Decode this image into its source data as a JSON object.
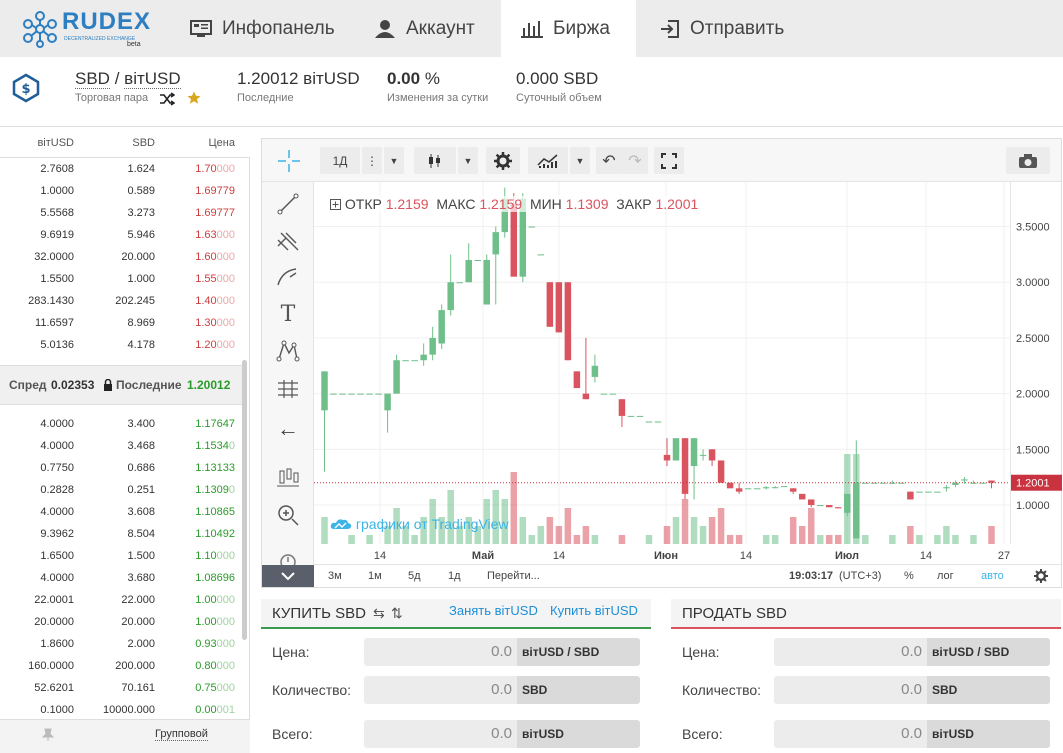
{
  "nav": {
    "logo": {
      "brand": "RUDEX",
      "sub": "DECENTRALIZED EXCHANGE",
      "tag": "beta"
    },
    "tabs": [
      {
        "label": "Инфопанель",
        "icon": "dashboard-icon"
      },
      {
        "label": "Аккаунт",
        "icon": "user-icon"
      },
      {
        "label": "Биржа",
        "icon": "bar-chart-icon",
        "active": true
      },
      {
        "label": "Отправить",
        "icon": "send-icon"
      }
    ]
  },
  "pair": {
    "base": "SBD",
    "sep": "/",
    "quote": "вітUSD",
    "pair_label": "Торговая пара",
    "last_value": "1.20012 вітUSD",
    "last_label": "Последние",
    "change_value": "0.00",
    "change_unit": "%",
    "change_label": "Изменения за сутки",
    "volume_value": "0.000 SBD",
    "volume_label": "Суточный объем"
  },
  "orderbook": {
    "headers": [
      "вітUSD",
      "SBD",
      "Цена"
    ],
    "asks": [
      [
        "2.7608",
        "1.624",
        "1.70",
        "000"
      ],
      [
        "1.0000",
        "0.589",
        "1.69779",
        ""
      ],
      [
        "5.5568",
        "3.273",
        "1.69777",
        ""
      ],
      [
        "9.6919",
        "5.946",
        "1.63",
        "000"
      ],
      [
        "32.0000",
        "20.000",
        "1.60",
        "000"
      ],
      [
        "1.5500",
        "1.000",
        "1.55",
        "000"
      ],
      [
        "283.1430",
        "202.245",
        "1.40",
        "000"
      ],
      [
        "11.6597",
        "8.969",
        "1.30",
        "000"
      ],
      [
        "5.0136",
        "4.178",
        "1.20",
        "000"
      ]
    ],
    "spread_label": "Спред",
    "spread_value": "0.02353",
    "last_label": "Последние",
    "last_value": "1.20012",
    "bids": [
      [
        "4.0000",
        "3.400",
        "1.17647",
        ""
      ],
      [
        "4.0000",
        "3.468",
        "1.1534",
        "0"
      ],
      [
        "0.7750",
        "0.686",
        "1.13133",
        ""
      ],
      [
        "0.2828",
        "0.251",
        "1.1309",
        "0"
      ],
      [
        "4.0000",
        "3.608",
        "1.10865",
        ""
      ],
      [
        "9.3962",
        "8.504",
        "1.10492",
        ""
      ],
      [
        "1.6500",
        "1.500",
        "1.10",
        "000"
      ],
      [
        "4.0000",
        "3.680",
        "1.08696",
        ""
      ],
      [
        "22.0001",
        "22.000",
        "1.00",
        "000"
      ],
      [
        "20.0000",
        "20.000",
        "1.00",
        "000"
      ],
      [
        "1.8600",
        "2.000",
        "0.93",
        "000"
      ],
      [
        "160.0000",
        "200.000",
        "0.80",
        "000"
      ],
      [
        "52.6201",
        "70.161",
        "0.75",
        "000"
      ],
      [
        "0.1000",
        "10000.000",
        "0.00",
        "001"
      ]
    ],
    "footer_label": "Групповой"
  },
  "chart": {
    "toolbar": {
      "interval": "1Д"
    },
    "ohlc": {
      "open_label": "ОТКР",
      "open": "1.2159",
      "high_label": "МАКС",
      "high": "1.2159",
      "low_label": "МИН",
      "low": "1.1309",
      "close_label": "ЗАКР",
      "close": "1.2001"
    },
    "attribution": "графики от TradingView",
    "price_ticks": [
      "3.5000",
      "3.0000",
      "2.5000",
      "2.0000",
      "1.5000",
      "1.0000"
    ],
    "last_price_tag": "1.2001",
    "time_ticks": [
      "14",
      "Май",
      "14",
      "Июн",
      "14",
      "Июл",
      "14",
      "27"
    ],
    "ranges": [
      "3м",
      "1м",
      "5д",
      "1д",
      "Перейти..."
    ],
    "clock": "19:03:17",
    "tz": "(UTC+3)",
    "pct": "%",
    "log": "лог",
    "auto": "авто",
    "colors": {
      "up": "#6fbf8a",
      "down": "#d9545e",
      "last": "#c8333f",
      "accent": "#3cb4e5"
    }
  },
  "chart_data": {
    "type": "candlestick",
    "title": "",
    "ylim": [
      0.65,
      3.9
    ],
    "y_ticks": [
      1.0,
      1.5,
      2.0,
      2.5,
      3.0,
      3.5
    ],
    "x_ticks": [
      "14",
      "Май",
      "14",
      "Июн",
      "14",
      "Июл",
      "14",
      "27"
    ],
    "last_price": 1.2001,
    "candles": [
      {
        "o": 1.85,
        "h": 2.2,
        "l": 1.3,
        "c": 2.2
      },
      {
        "o": 2.0,
        "h": 2.0,
        "l": 2.0,
        "c": 2.0
      },
      {
        "o": 2.0,
        "h": 2.0,
        "l": 2.0,
        "c": 2.0
      },
      {
        "o": 2.0,
        "h": 2.0,
        "l": 2.0,
        "c": 2.0
      },
      {
        "o": 2.0,
        "h": 2.0,
        "l": 2.0,
        "c": 2.0
      },
      {
        "o": 2.0,
        "h": 2.0,
        "l": 2.0,
        "c": 2.0
      },
      {
        "o": 2.0,
        "h": 2.0,
        "l": 2.0,
        "c": 2.0
      },
      {
        "o": 1.85,
        "h": 2.0,
        "l": 1.65,
        "c": 2.0
      },
      {
        "o": 2.0,
        "h": 2.35,
        "l": 2.0,
        "c": 2.3
      },
      {
        "o": 2.3,
        "h": 2.3,
        "l": 2.3,
        "c": 2.3
      },
      {
        "o": 2.3,
        "h": 2.3,
        "l": 2.3,
        "c": 2.3
      },
      {
        "o": 2.3,
        "h": 2.45,
        "l": 2.25,
        "c": 2.35
      },
      {
        "o": 2.35,
        "h": 2.6,
        "l": 2.3,
        "c": 2.5
      },
      {
        "o": 2.45,
        "h": 2.8,
        "l": 2.4,
        "c": 2.75
      },
      {
        "o": 2.75,
        "h": 3.25,
        "l": 2.7,
        "c": 3.0
      },
      {
        "o": 3.0,
        "h": 3.0,
        "l": 3.0,
        "c": 3.0
      },
      {
        "o": 3.0,
        "h": 3.35,
        "l": 3.0,
        "c": 3.2
      },
      {
        "o": 3.2,
        "h": 3.2,
        "l": 3.2,
        "c": 3.2
      },
      {
        "o": 2.8,
        "h": 3.25,
        "l": 2.8,
        "c": 3.2
      },
      {
        "o": 3.25,
        "h": 3.5,
        "l": 2.8,
        "c": 3.45
      },
      {
        "o": 3.45,
        "h": 3.85,
        "l": 3.4,
        "c": 3.75
      },
      {
        "o": 3.7,
        "h": 3.8,
        "l": 3.05,
        "c": 3.05
      },
      {
        "o": 3.05,
        "h": 3.8,
        "l": 3.0,
        "c": 3.75
      },
      {
        "o": 3.5,
        "h": 3.5,
        "l": 3.5,
        "c": 3.5
      },
      {
        "o": 3.25,
        "h": 3.25,
        "l": 3.25,
        "c": 3.25
      },
      {
        "o": 3.0,
        "h": 3.0,
        "l": 2.6,
        "c": 2.6
      },
      {
        "o": 3.0,
        "h": 3.0,
        "l": 2.55,
        "c": 2.55
      },
      {
        "o": 3.0,
        "h": 3.0,
        "l": 2.3,
        "c": 2.3
      },
      {
        "o": 2.2,
        "h": 2.2,
        "l": 2.05,
        "c": 2.05
      },
      {
        "o": 2.0,
        "h": 2.5,
        "l": 1.95,
        "c": 1.95
      },
      {
        "o": 2.15,
        "h": 2.35,
        "l": 2.1,
        "c": 2.25
      },
      {
        "o": 2.0,
        "h": 2.0,
        "l": 2.0,
        "c": 2.0
      },
      {
        "o": 2.0,
        "h": 2.0,
        "l": 2.0,
        "c": 2.0
      },
      {
        "o": 1.95,
        "h": 1.95,
        "l": 1.7,
        "c": 1.8
      },
      {
        "o": 1.8,
        "h": 1.8,
        "l": 1.8,
        "c": 1.8
      },
      {
        "o": 1.8,
        "h": 1.8,
        "l": 1.8,
        "c": 1.8
      },
      {
        "o": 1.75,
        "h": 1.75,
        "l": 1.75,
        "c": 1.75
      },
      {
        "o": 1.75,
        "h": 1.75,
        "l": 1.75,
        "c": 1.75
      },
      {
        "o": 1.45,
        "h": 1.6,
        "l": 1.35,
        "c": 1.4
      },
      {
        "o": 1.4,
        "h": 1.6,
        "l": 1.4,
        "c": 1.6
      },
      {
        "o": 1.6,
        "h": 1.6,
        "l": 1.05,
        "c": 1.1
      },
      {
        "o": 1.35,
        "h": 1.6,
        "l": 1.05,
        "c": 1.6
      },
      {
        "o": 1.45,
        "h": 1.5,
        "l": 1.4,
        "c": 1.45
      },
      {
        "o": 1.5,
        "h": 1.5,
        "l": 1.35,
        "c": 1.4
      },
      {
        "o": 1.4,
        "h": 1.4,
        "l": 1.2,
        "c": 1.2
      },
      {
        "o": 1.2,
        "h": 1.2,
        "l": 1.15,
        "c": 1.15
      },
      {
        "o": 1.15,
        "h": 1.2,
        "l": 1.1,
        "c": 1.12
      },
      {
        "o": 1.15,
        "h": 1.15,
        "l": 1.15,
        "c": 1.15
      },
      {
        "o": 1.15,
        "h": 1.15,
        "l": 1.15,
        "c": 1.15
      },
      {
        "o": 1.15,
        "h": 1.17,
        "l": 1.14,
        "c": 1.16
      },
      {
        "o": 1.16,
        "h": 1.17,
        "l": 1.15,
        "c": 1.16
      },
      {
        "o": 1.17,
        "h": 1.17,
        "l": 1.17,
        "c": 1.17
      },
      {
        "o": 1.15,
        "h": 1.15,
        "l": 1.1,
        "c": 1.12
      },
      {
        "o": 1.1,
        "h": 1.1,
        "l": 1.05,
        "c": 1.05
      },
      {
        "o": 1.05,
        "h": 1.05,
        "l": 0.98,
        "c": 1.0
      },
      {
        "o": 1.0,
        "h": 1.0,
        "l": 1.0,
        "c": 1.0
      },
      {
        "o": 1.0,
        "h": 1.0,
        "l": 0.98,
        "c": 0.98
      },
      {
        "o": 0.98,
        "h": 0.98,
        "l": 0.97,
        "c": 0.97
      },
      {
        "o": 0.93,
        "h": 1.1,
        "l": 0.9,
        "c": 1.1
      },
      {
        "o": 0.7,
        "h": 1.58,
        "l": 0.7,
        "c": 1.2
      },
      {
        "o": 1.2,
        "h": 1.2,
        "l": 1.2,
        "c": 1.2
      },
      {
        "o": 1.2,
        "h": 1.2,
        "l": 1.2,
        "c": 1.2
      },
      {
        "o": 1.2,
        "h": 1.2,
        "l": 1.2,
        "c": 1.2
      },
      {
        "o": 1.2,
        "h": 1.22,
        "l": 1.19,
        "c": 1.2
      },
      {
        "o": 1.2,
        "h": 1.2,
        "l": 1.2,
        "c": 1.2
      },
      {
        "o": 1.12,
        "h": 1.12,
        "l": 1.05,
        "c": 1.05
      },
      {
        "o": 1.12,
        "h": 1.12,
        "l": 1.12,
        "c": 1.12
      },
      {
        "o": 1.12,
        "h": 1.12,
        "l": 1.12,
        "c": 1.12
      },
      {
        "o": 1.12,
        "h": 1.12,
        "l": 1.12,
        "c": 1.12
      },
      {
        "o": 1.15,
        "h": 1.18,
        "l": 1.12,
        "c": 1.16
      },
      {
        "o": 1.18,
        "h": 1.22,
        "l": 1.16,
        "c": 1.2
      },
      {
        "o": 1.22,
        "h": 1.25,
        "l": 1.19,
        "c": 1.23
      },
      {
        "o": 1.2,
        "h": 1.22,
        "l": 1.19,
        "c": 1.2
      },
      {
        "o": 1.2,
        "h": 1.2,
        "l": 1.2,
        "c": 1.2
      },
      {
        "o": 1.22,
        "h": 1.22,
        "l": 1.15,
        "c": 1.2
      }
    ],
    "volume": [
      0.3,
      0.0,
      0.0,
      0.1,
      0.0,
      0.1,
      0.0,
      0.2,
      0.4,
      0.2,
      0.1,
      0.3,
      0.5,
      0.3,
      0.6,
      0.2,
      0.3,
      0.2,
      0.5,
      0.6,
      0.5,
      0.8,
      0.3,
      0.1,
      0.2,
      0.3,
      0.2,
      0.4,
      0.1,
      0.2,
      0.1,
      0.0,
      0.0,
      0.1,
      0.0,
      0.0,
      0.1,
      0.0,
      0.2,
      0.3,
      0.5,
      0.3,
      0.2,
      0.3,
      0.4,
      0.1,
      0.1,
      0.0,
      0.0,
      0.1,
      0.1,
      0.0,
      0.3,
      0.2,
      0.4,
      0.1,
      0.1,
      0.1,
      1.0,
      1.0,
      0.1,
      0.0,
      0.0,
      0.1,
      0.0,
      0.2,
      0.1,
      0.0,
      0.1,
      0.2,
      0.1,
      0.0,
      0.1,
      0.0,
      0.2
    ]
  },
  "buy": {
    "title": "КУПИТЬ SBD",
    "borrow": "Занять вітUSD",
    "buy_link": "Купить вітUSD",
    "price_label": "Цена:",
    "price_value": "0.0",
    "price_unit": "вітUSD / SBD",
    "amount_label": "Количество:",
    "amount_value": "0.0",
    "amount_unit": "SBD",
    "total_label": "Всего:",
    "total_value": "0.0",
    "total_unit": "вітUSD"
  },
  "sell": {
    "title": "ПРОДАТЬ SBD",
    "price_label": "Цена:",
    "price_value": "0.0",
    "price_unit": "вітUSD / SBD",
    "amount_label": "Количество:",
    "amount_value": "0.0",
    "amount_unit": "SBD",
    "total_label": "Всего:",
    "total_value": "0.0",
    "total_unit": "вітUSD"
  }
}
